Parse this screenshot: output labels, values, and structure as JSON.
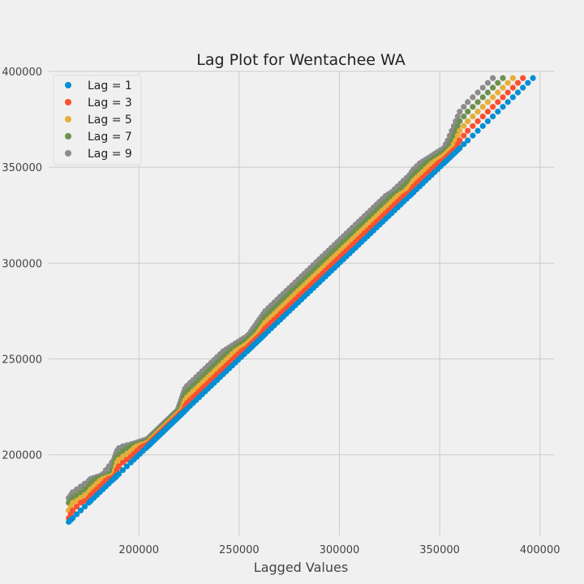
{
  "chart_data": {
    "type": "scatter",
    "title": "Lag Plot for Wentachee WA",
    "xlabel": "Lagged Values",
    "ylabel": "",
    "xlim": [
      155000,
      407000
    ],
    "ylim": [
      158000,
      400000
    ],
    "xticks": [
      200000,
      250000,
      300000,
      350000,
      400000
    ],
    "yticks": [
      200000,
      250000,
      300000,
      350000,
      400000
    ],
    "grid": true,
    "legend_position": "top-left",
    "series": [
      {
        "name": "Lag = 1",
        "color": "#008fd5",
        "shift": 0
      },
      {
        "name": "Lag = 3",
        "color": "#fc4f30",
        "shift": 2
      },
      {
        "name": "Lag = 5",
        "color": "#e5ae38",
        "shift": 4
      },
      {
        "name": "Lag = 7",
        "color": "#6d904f",
        "shift": 6
      },
      {
        "name": "Lag = 9",
        "color": "#8b8b8b",
        "shift": 8
      }
    ],
    "base_series": [
      165000,
      166000,
      167000,
      169000,
      171000,
      173000,
      175000,
      176000,
      177500,
      179000,
      180500,
      182000,
      183500,
      185000,
      186500,
      187500,
      188000,
      188500,
      189000,
      190000,
      192000,
      194000,
      196000,
      197500,
      199000,
      200500,
      202000,
      203500,
      204500,
      205000,
      205500,
      206000,
      206500,
      207000,
      207500,
      208000,
      208500,
      209000,
      209500,
      210000,
      210500,
      211000,
      211500,
      212000,
      212500,
      213000,
      213500,
      214000,
      214500,
      215000,
      215500,
      216000,
      216500,
      217000,
      217500,
      218000,
      218500,
      219000,
      219500,
      220000,
      220500,
      221000,
      221500,
      222000,
      222500,
      223000,
      224000,
      225500,
      227000,
      228500,
      230000,
      231500,
      233000,
      234500,
      236000,
      237500,
      239000,
      240500,
      242000,
      243500,
      245000,
      246500,
      248000,
      249500,
      251000,
      252500,
      254000,
      255000,
      256000,
      257000,
      258000,
      259000,
      260000,
      261000,
      262000,
      263000,
      264500,
      266000,
      267500,
      269000,
      270500,
      272000,
      273500,
      275000,
      276500,
      278000,
      279500,
      281000,
      282500,
      284000,
      285500,
      287000,
      288500,
      290000,
      291500,
      293000,
      294500,
      296000,
      297500,
      299000,
      300500,
      302000,
      303500,
      305000,
      306500,
      308000,
      309500,
      311000,
      312500,
      314000,
      315500,
      317000,
      318500,
      320000,
      321500,
      323000,
      324500,
      326000,
      327500,
      329000,
      330500,
      332000,
      333500,
      335000,
      336000,
      337000,
      338500,
      340000,
      341500,
      343000,
      344500,
      346000,
      347500,
      349000,
      350500,
      352000,
      353000,
      354000,
      355000,
      356000,
      357000,
      358000,
      359000,
      360000,
      362000,
      364000,
      366500,
      369000,
      371500,
      374000,
      376500,
      379000,
      381500,
      384000,
      386500,
      389000,
      391500,
      394000,
      396500
    ]
  }
}
